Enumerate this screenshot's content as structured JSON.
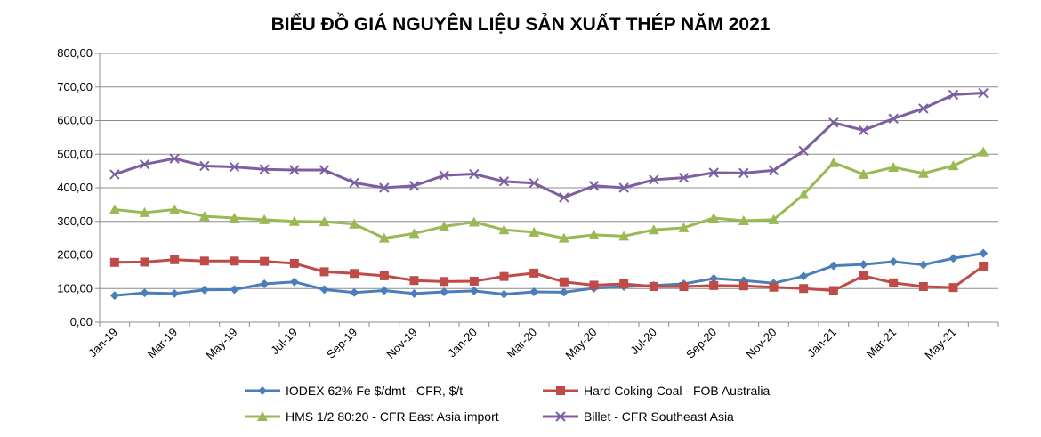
{
  "chart_data": {
    "type": "line",
    "title": "BIỂU ĐỒ GIÁ NGUYÊN LIỆU SẢN XUẤT THÉP NĂM 2021",
    "xlabel": "",
    "ylabel": "",
    "ylim": [
      0,
      800
    ],
    "y_ticks": [
      "0,00",
      "100,00",
      "200,00",
      "300,00",
      "400,00",
      "500,00",
      "600,00",
      "700,00",
      "800,00"
    ],
    "y_tick_values": [
      0,
      100,
      200,
      300,
      400,
      500,
      600,
      700,
      800
    ],
    "categories": [
      "Jan-19",
      "Feb-19",
      "Mar-19",
      "Apr-19",
      "May-19",
      "Jun-19",
      "Jul-19",
      "Aug-19",
      "Sep-19",
      "Oct-19",
      "Nov-19",
      "Dec-19",
      "Jan-20",
      "Feb-20",
      "Mar-20",
      "Apr-20",
      "May-20",
      "Jun-20",
      "Jul-20",
      "Aug-20",
      "Sep-20",
      "Oct-20",
      "Nov-20",
      "Dec-20",
      "Jan-21",
      "Feb-21",
      "Mar-21",
      "Apr-21",
      "May-21",
      "Jun-21"
    ],
    "x_tick_labels": [
      "Jan-19",
      "",
      "Mar-19",
      "",
      "May-19",
      "",
      "Jul-19",
      "",
      "Sep-19",
      "",
      "Nov-19",
      "",
      "Jan-20",
      "",
      "Mar-20",
      "",
      "May-20",
      "",
      "Jul-20",
      "",
      "Sep-20",
      "",
      "Nov-20",
      "",
      "Jan-21",
      "",
      "Mar-21",
      "",
      "May-21",
      ""
    ],
    "grid": "horizontal",
    "legend_position": "bottom",
    "series": [
      {
        "name": "IODEX 62% Fe $/dmt - CFR, $/t",
        "color": "#4A7EBB",
        "marker": "diamond",
        "values": [
          79,
          87,
          85,
          96,
          97,
          114,
          120,
          97,
          88,
          94,
          85,
          90,
          93,
          83,
          90,
          89,
          101,
          106,
          109,
          114,
          130,
          124,
          116,
          137,
          168,
          172,
          180,
          171,
          190,
          205
        ]
      },
      {
        "name": "Hard Coking Coal - FOB Australia",
        "color": "#BE4B48",
        "marker": "square",
        "values": [
          178,
          179,
          186,
          182,
          182,
          181,
          175,
          150,
          145,
          138,
          124,
          121,
          122,
          136,
          146,
          120,
          110,
          114,
          106,
          106,
          109,
          108,
          104,
          100,
          94,
          138,
          117,
          106,
          103,
          167
        ]
      },
      {
        "name": "HMS 1/2 80:20 - CFR East Asia import",
        "color": "#98B954",
        "marker": "triangle",
        "values": [
          335,
          326,
          335,
          315,
          310,
          305,
          300,
          299,
          292,
          250,
          264,
          285,
          298,
          275,
          268,
          250,
          260,
          256,
          275,
          281,
          310,
          302,
          305,
          380,
          475,
          440,
          461,
          443,
          466,
          507
        ]
      },
      {
        "name": "Billet - CFR Southeast Asia",
        "color": "#7D5FA0",
        "marker": "x",
        "values": [
          440,
          470,
          487,
          465,
          462,
          455,
          453,
          453,
          415,
          400,
          406,
          437,
          441,
          419,
          414,
          371,
          406,
          400,
          424,
          430,
          445,
          444,
          452,
          510,
          594,
          571,
          606,
          636,
          677,
          682
        ]
      }
    ]
  }
}
